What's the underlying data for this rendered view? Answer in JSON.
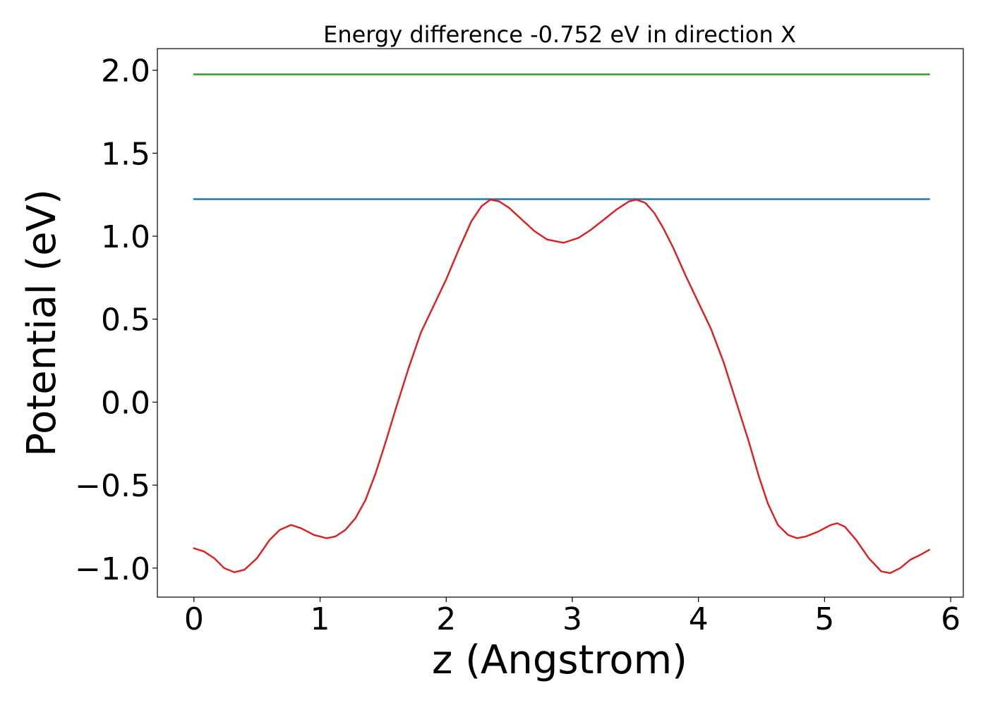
{
  "chart_data": {
    "type": "line",
    "title": "Energy difference -0.752 eV in direction X",
    "xlabel": "z (Angstrom)",
    "ylabel": "Potential (eV)",
    "xlim": [
      -0.29,
      6.1
    ],
    "ylim": [
      -1.175,
      2.13
    ],
    "xticks": [
      0,
      1,
      2,
      3,
      4,
      5,
      6
    ],
    "xtick_labels": [
      "0",
      "1",
      "2",
      "3",
      "4",
      "5",
      "6"
    ],
    "yticks": [
      -1.0,
      -0.5,
      0.0,
      0.5,
      1.0,
      1.5,
      2.0
    ],
    "ytick_labels": [
      "−1.0",
      "−0.5",
      "0.0",
      "0.5",
      "1.0",
      "1.5",
      "2.0"
    ],
    "grid": false,
    "series": [
      {
        "color": "#2ca02c",
        "x": [
          0.0,
          5.83
        ],
        "y": [
          1.975,
          1.975
        ]
      },
      {
        "color": "#1f77b4",
        "x": [
          0.0,
          5.83
        ],
        "y": [
          1.223,
          1.223
        ]
      },
      {
        "color": "#e41a1c",
        "x": [
          0.0,
          0.08,
          0.16,
          0.24,
          0.32,
          0.4,
          0.5,
          0.6,
          0.68,
          0.77,
          0.85,
          0.95,
          1.05,
          1.12,
          1.2,
          1.28,
          1.36,
          1.44,
          1.52,
          1.6,
          1.7,
          1.8,
          1.9,
          2.0,
          2.1,
          2.2,
          2.28,
          2.35,
          2.42,
          2.5,
          2.6,
          2.7,
          2.8,
          2.93,
          3.05,
          3.15,
          3.25,
          3.35,
          3.45,
          3.51,
          3.58,
          3.65,
          3.72,
          3.8,
          3.9,
          4.0,
          4.1,
          4.2,
          4.3,
          4.4,
          4.48,
          4.55,
          4.63,
          4.71,
          4.78,
          4.85,
          4.95,
          5.05,
          5.1,
          5.16,
          5.25,
          5.35,
          5.45,
          5.52,
          5.6,
          5.68,
          5.76,
          5.83
        ],
        "y": [
          -0.88,
          -0.9,
          -0.94,
          -1.0,
          -1.025,
          -1.01,
          -0.94,
          -0.83,
          -0.77,
          -0.74,
          -0.76,
          -0.8,
          -0.82,
          -0.81,
          -0.77,
          -0.7,
          -0.59,
          -0.43,
          -0.24,
          -0.04,
          0.2,
          0.42,
          0.58,
          0.74,
          0.92,
          1.09,
          1.18,
          1.22,
          1.21,
          1.17,
          1.1,
          1.03,
          0.98,
          0.96,
          0.99,
          1.04,
          1.1,
          1.16,
          1.21,
          1.22,
          1.2,
          1.14,
          1.05,
          0.93,
          0.76,
          0.6,
          0.44,
          0.24,
          0.0,
          -0.24,
          -0.45,
          -0.61,
          -0.74,
          -0.8,
          -0.82,
          -0.81,
          -0.78,
          -0.74,
          -0.73,
          -0.75,
          -0.83,
          -0.94,
          -1.02,
          -1.03,
          -1.0,
          -0.95,
          -0.92,
          -0.89
        ]
      }
    ]
  }
}
